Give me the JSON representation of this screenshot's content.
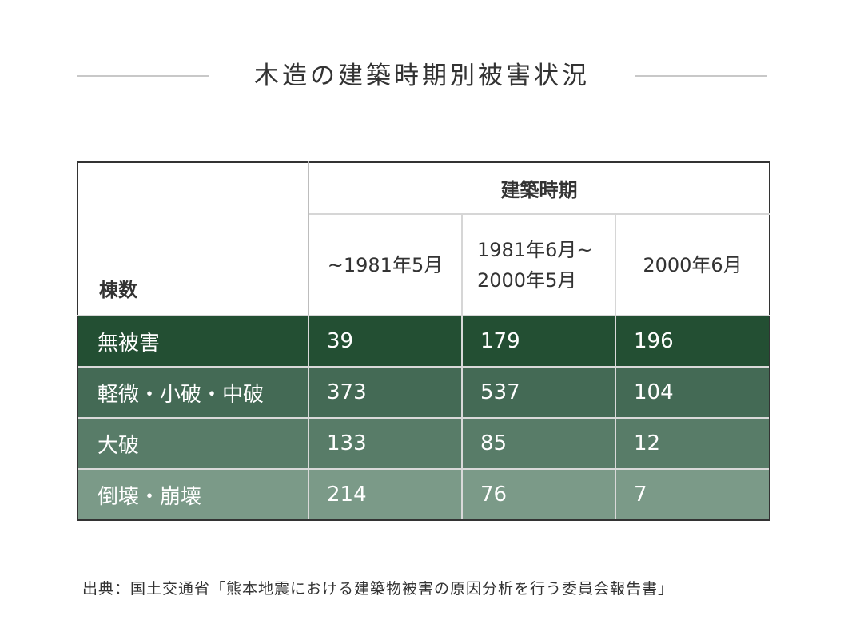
{
  "title": "木造の建築時期別被害状況",
  "table": {
    "stub_header": "棟数",
    "group_header": "建築時期",
    "periods": [
      "~1981年5月",
      "1981年6月~\n2000年5月",
      "2000年6月"
    ],
    "rows": [
      {
        "label": "無被害",
        "values": [
          "39",
          "179",
          "196"
        ],
        "color": "#234f33"
      },
      {
        "label": "軽微・小破・中破",
        "values": [
          "373",
          "537",
          "104"
        ],
        "color": "#446a55"
      },
      {
        "label": "大破",
        "values": [
          "133",
          "85",
          "12"
        ],
        "color": "#587c68"
      },
      {
        "label": "倒壊・崩壊",
        "values": [
          "214",
          "76",
          "7"
        ],
        "color": "#7b9a88"
      }
    ]
  },
  "source": "出典：国土交通省「熊本地震における建築物被害の原因分析を行う委員会報告書」"
}
